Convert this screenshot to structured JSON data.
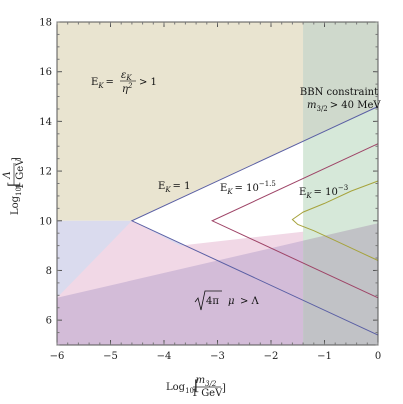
{
  "chart_data": {
    "type": "area",
    "xlim": [
      -6.0,
      0.0
    ],
    "ylim": [
      5.0,
      18.0
    ],
    "x_ticks": [
      "-6",
      "-5",
      "-4",
      "-3",
      "-2",
      "-1",
      "0"
    ],
    "y_ticks": [
      "6",
      "8",
      "10",
      "12",
      "14",
      "16",
      "18"
    ],
    "xlabel": {
      "pre": "Log",
      "sub": "10",
      "num": "m",
      "num_sub": "3/2",
      "den": "1 GeV"
    },
    "ylabel": {
      "pre": "Log",
      "sub": "10",
      "num": "Λ",
      "den": "1 GeV"
    },
    "colors": {
      "tan": "#e9e4d0",
      "lavender": "#dadbee",
      "pink": "#f1d8e6",
      "purple": "#d3bcd8",
      "green": "#d6e8d9",
      "green_overlap": "#cfd9cc",
      "grey_overlap": "#c1c2c6",
      "blue_line": "#5a5fa4",
      "red_line": "#9e4467",
      "olive_line": "#a6a33c",
      "frame": "#555555"
    },
    "regions": [
      {
        "name": "E_K > 1",
        "color": "tan",
        "points": [
          [
            -6,
            18
          ],
          [
            0,
            18
          ],
          [
            0,
            14.6
          ],
          [
            -4.6,
            10
          ],
          [
            -6,
            10
          ]
        ]
      },
      {
        "name": "E_K > 1 lower",
        "color": "lavender",
        "points": [
          [
            -6,
            10
          ],
          [
            -4.6,
            10
          ],
          [
            0,
            5.4
          ],
          [
            -6,
            5.0
          ]
        ]
      },
      {
        "name": "sqrt(4pi) mu > Lambda upper",
        "color": "pink",
        "points": [
          [
            -4.6,
            10
          ],
          [
            -6,
            6.9
          ],
          [
            -6,
            5.0
          ],
          [
            0,
            5.0
          ],
          [
            0,
            9.9
          ],
          [
            -3.7,
            9.0
          ]
        ]
      },
      {
        "name": "sqrt(4pi) mu > Lambda",
        "color": "purple",
        "points": [
          [
            -6,
            6.9
          ],
          [
            0,
            9.9
          ],
          [
            0,
            5.0
          ],
          [
            -6,
            5.0
          ]
        ]
      },
      {
        "name": "BBN constraint",
        "color": "green",
        "points": [
          [
            -1.4,
            18
          ],
          [
            0,
            18
          ],
          [
            0,
            5
          ],
          [
            -1.4,
            5
          ]
        ]
      }
    ],
    "series": [
      {
        "name": "E_K = 1",
        "color": "blue_line",
        "points": [
          [
            0,
            14.6
          ],
          [
            -4.6,
            10
          ],
          [
            0,
            5.4
          ]
        ]
      },
      {
        "name": "E_K = 10^-1.5",
        "color": "red_line",
        "points": [
          [
            0,
            13.1
          ],
          [
            -3.1,
            10
          ],
          [
            0,
            6.9
          ]
        ]
      },
      {
        "name": "E_K = 10^-3",
        "color": "olive_line",
        "points": [
          [
            0,
            11.6
          ],
          [
            -0.5,
            11.2
          ],
          [
            -1.0,
            10.7
          ],
          [
            -1.4,
            10.35
          ],
          [
            -1.6,
            10.05
          ],
          [
            -1.5,
            9.85
          ],
          [
            -1.2,
            9.6
          ],
          [
            -0.8,
            9.2
          ],
          [
            -0.4,
            8.8
          ],
          [
            0,
            8.4
          ]
        ]
      }
    ],
    "annotations": {
      "region_tan": {
        "lhs": "E",
        "sub": "K",
        "eq": "=",
        "num": "ε",
        "num_sub": "K",
        "den": "η",
        "den_sup": "2",
        "rhs": "> 1"
      },
      "region_bbn_title": "BBN constraint",
      "region_bbn_cond": {
        "m": "m",
        "sub": "3/2",
        "rhs": "> 40 MeV"
      },
      "line1": {
        "lhs": "E",
        "sub": "K",
        "rhs": "= 1"
      },
      "line2": {
        "lhs": "E",
        "sub": "K",
        "rhs": "= 10",
        "sup": "−1.5"
      },
      "line3": {
        "lhs": "E",
        "sub": "K",
        "rhs": "= 10",
        "sup": "−3"
      },
      "region_purple": {
        "root": "4π",
        "mu": "μ",
        "rhs": "> Λ"
      }
    }
  }
}
